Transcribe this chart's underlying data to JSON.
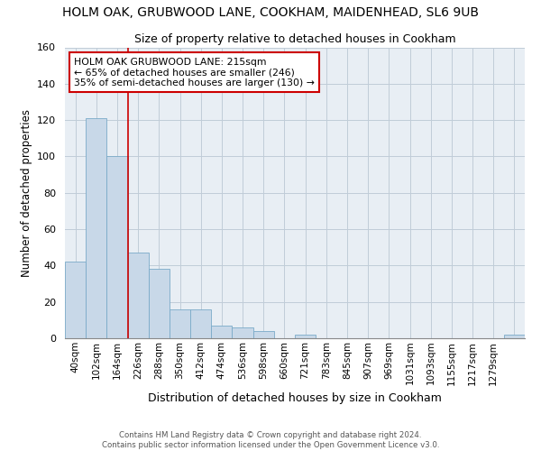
{
  "title": "HOLM OAK, GRUBWOOD LANE, COOKHAM, MAIDENHEAD, SL6 9UB",
  "subtitle": "Size of property relative to detached houses in Cookham",
  "xlabel": "Distribution of detached houses by size in Cookham",
  "ylabel": "Number of detached properties",
  "bar_values": [
    42,
    121,
    100,
    47,
    38,
    16,
    16,
    7,
    6,
    4,
    0,
    2,
    0,
    0,
    0,
    0,
    0,
    0,
    0,
    0,
    0,
    2
  ],
  "bar_labels": [
    "40sqm",
    "102sqm",
    "164sqm",
    "226sqm",
    "288sqm",
    "350sqm",
    "412sqm",
    "474sqm",
    "536sqm",
    "598sqm",
    "660sqm",
    "721sqm",
    "783sqm",
    "845sqm",
    "907sqm",
    "969sqm",
    "1031sqm",
    "1093sqm",
    "1155sqm",
    "1217sqm",
    "1279sqm",
    ""
  ],
  "bar_color": "#c8d8e8",
  "bar_edge_color": "#7aaac8",
  "property_line_x": 2.5,
  "annotation_line1": "HOLM OAK GRUBWOOD LANE: 215sqm",
  "annotation_line2": "← 65% of detached houses are smaller (246)",
  "annotation_line3": "35% of semi-detached houses are larger (130) →",
  "annotation_box_color": "#cc0000",
  "vline_color": "#cc0000",
  "ylim": [
    0,
    160
  ],
  "yticks": [
    0,
    20,
    40,
    60,
    80,
    100,
    120,
    140,
    160
  ],
  "grid_color": "#c0ccd8",
  "bg_color": "#e8eef4",
  "footer1": "Contains HM Land Registry data © Crown copyright and database right 2024.",
  "footer2": "Contains public sector information licensed under the Open Government Licence v3.0."
}
